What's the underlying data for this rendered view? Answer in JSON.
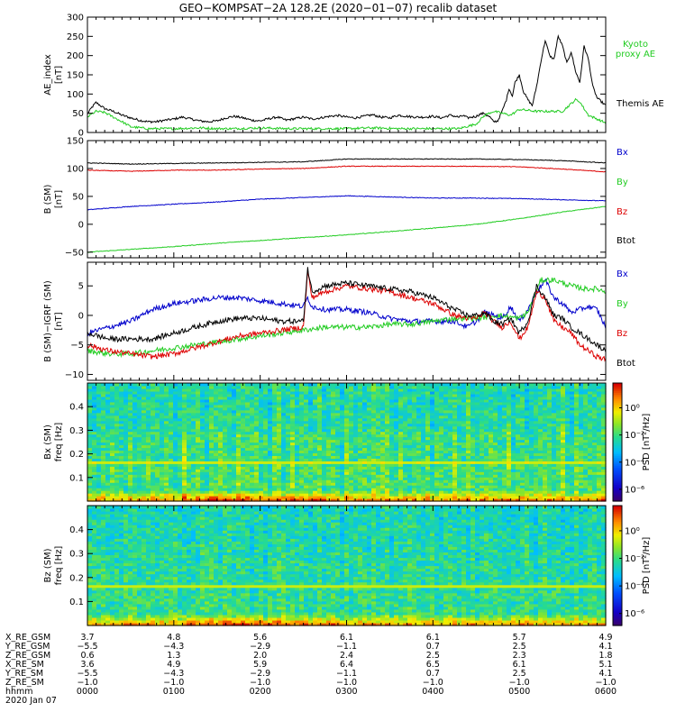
{
  "title": "GEO−KOMPSAT−2A 128.2E (2020−01−07) recalib dataset",
  "chart_data": [
    {
      "type": "line",
      "ylabel_lines": [
        "AE_index",
        "[nT]"
      ],
      "ylim": [
        0,
        300
      ],
      "yticks": [
        "0",
        "50",
        "100",
        "150",
        "200",
        "250",
        "300"
      ],
      "xlim": [
        0,
        6
      ],
      "series": [
        {
          "name": "Themis AE",
          "color": "#000000",
          "x": [
            0,
            0.05,
            0.1,
            0.15,
            0.2,
            0.3,
            0.4,
            0.5,
            0.6,
            0.7,
            0.8,
            0.9,
            1.0,
            1.1,
            1.2,
            1.3,
            1.4,
            1.5,
            1.6,
            1.7,
            1.8,
            1.9,
            2.0,
            2.1,
            2.2,
            2.3,
            2.4,
            2.5,
            2.6,
            2.7,
            2.8,
            2.9,
            3.0,
            3.1,
            3.2,
            3.3,
            3.4,
            3.5,
            3.6,
            3.7,
            3.8,
            3.9,
            4.0,
            4.1,
            4.2,
            4.3,
            4.35,
            4.4,
            4.5,
            4.55,
            4.6,
            4.62,
            4.66,
            4.7,
            4.75,
            4.8,
            4.85,
            4.88,
            4.92,
            4.95,
            5.0,
            5.05,
            5.1,
            5.15,
            5.2,
            5.25,
            5.3,
            5.35,
            5.4,
            5.45,
            5.5,
            5.55,
            5.6,
            5.65,
            5.7,
            5.75,
            5.8,
            5.85,
            5.9,
            5.95,
            6.0
          ],
          "y": [
            48,
            65,
            78,
            70,
            62,
            55,
            45,
            38,
            32,
            28,
            28,
            32,
            35,
            40,
            35,
            30,
            28,
            30,
            38,
            42,
            38,
            32,
            30,
            36,
            40,
            32,
            36,
            40,
            35,
            38,
            42,
            44,
            40,
            38,
            42,
            46,
            40,
            38,
            45,
            42,
            40,
            40,
            42,
            38,
            45,
            40,
            44,
            38,
            42,
            48,
            50,
            45,
            40,
            28,
            30,
            55,
            85,
            115,
            95,
            130,
            150,
            105,
            85,
            70,
            120,
            185,
            240,
            200,
            190,
            250,
            225,
            180,
            210,
            160,
            130,
            225,
            190,
            120,
            90,
            80,
            70
          ]
        },
        {
          "name": "Kyoto proxy AE",
          "color": "#22cc22",
          "label_lines": [
            "Kyoto",
            "proxy AE"
          ],
          "x": [
            0,
            0.05,
            0.1,
            0.2,
            0.3,
            0.4,
            0.5,
            0.7,
            1.0,
            1.3,
            1.5,
            1.7,
            2.0,
            2.3,
            2.6,
            3.0,
            3.3,
            3.6,
            4.0,
            4.3,
            4.5,
            4.6,
            4.7,
            4.8,
            4.9,
            5.0,
            5.2,
            5.4,
            5.5,
            5.6,
            5.65,
            5.7,
            5.75,
            5.8,
            5.9,
            6.0
          ],
          "y": [
            40,
            48,
            55,
            52,
            40,
            28,
            15,
            10,
            10,
            12,
            10,
            10,
            12,
            10,
            10,
            10,
            12,
            10,
            10,
            10,
            22,
            45,
            55,
            50,
            45,
            60,
            55,
            55,
            55,
            75,
            85,
            80,
            62,
            45,
            35,
            25
          ]
        }
      ]
    },
    {
      "type": "line",
      "ylabel_lines": [
        "B (SM)",
        "[nT]"
      ],
      "ylim": [
        -60,
        150
      ],
      "yticks": [
        "−50",
        "0",
        "50",
        "100",
        "150"
      ],
      "xlim": [
        0,
        6
      ],
      "series": [
        {
          "name": "Bx",
          "color": "#0000cc",
          "x": [
            0,
            0.5,
            1,
            1.5,
            2,
            2.5,
            3,
            3.5,
            4,
            4.5,
            5,
            5.5,
            6
          ],
          "y": [
            26,
            32,
            36,
            40,
            45,
            48,
            51,
            49,
            47,
            47,
            46,
            44,
            42
          ]
        },
        {
          "name": "By",
          "color": "#22cc22",
          "x": [
            0,
            0.5,
            1,
            1.5,
            2,
            2.5,
            3,
            3.5,
            4,
            4.5,
            5,
            5.5,
            6
          ],
          "y": [
            -50,
            -45,
            -40,
            -34,
            -29,
            -24,
            -19,
            -13,
            -7,
            0,
            10,
            22,
            32
          ]
        },
        {
          "name": "Bz",
          "color": "#dd0000",
          "x": [
            0,
            0.5,
            1,
            1.5,
            2,
            2.5,
            3,
            3.5,
            4,
            4.5,
            5,
            5.5,
            6
          ],
          "y": [
            97,
            95,
            97,
            97,
            99,
            100,
            104,
            104,
            104,
            104,
            103,
            99,
            94
          ]
        },
        {
          "name": "Btot",
          "color": "#000000",
          "x": [
            0,
            0.5,
            1,
            1.5,
            2,
            2.5,
            3,
            3.5,
            4,
            4.5,
            5,
            5.5,
            6
          ],
          "y": [
            110,
            108,
            109,
            110,
            111,
            112,
            117,
            117,
            117,
            117,
            116,
            114,
            110
          ]
        }
      ]
    },
    {
      "type": "line",
      "ylabel_lines": [
        "B (SM)−IGRF (SM)",
        "[nT]"
      ],
      "ylim": [
        -11,
        9
      ],
      "yticks": [
        "−10",
        "−5",
        "0",
        "5"
      ],
      "xlim": [
        0,
        6
      ],
      "series": [
        {
          "name": "Bx",
          "color": "#0000cc",
          "x": [
            0,
            0.25,
            0.5,
            0.75,
            1.0,
            1.25,
            1.5,
            1.75,
            2.0,
            2.25,
            2.5,
            2.55,
            2.6,
            2.75,
            3.0,
            3.25,
            3.5,
            3.75,
            4.0,
            4.25,
            4.4,
            4.5,
            4.6,
            4.7,
            4.8,
            4.9,
            5.0,
            5.1,
            5.2,
            5.3,
            5.4,
            5.5,
            5.6,
            5.7,
            5.8,
            5.9,
            6.0
          ],
          "y": [
            -3,
            -2,
            -1,
            1,
            2,
            2.5,
            3,
            3,
            2.5,
            2,
            1.5,
            3,
            1.5,
            1,
            1,
            0.5,
            -0.5,
            -1,
            -1,
            -1,
            -2,
            -1,
            0.5,
            0,
            -0.5,
            1.5,
            -1,
            1,
            4,
            6,
            3,
            2,
            0.5,
            1,
            1.5,
            1,
            -2
          ]
        },
        {
          "name": "By",
          "color": "#22cc22",
          "x": [
            0,
            0.25,
            0.5,
            0.75,
            1.0,
            1.25,
            1.5,
            1.75,
            2.0,
            2.25,
            2.5,
            2.75,
            3.0,
            3.25,
            3.5,
            3.75,
            4.0,
            4.25,
            4.5,
            4.75,
            5.0,
            5.1,
            5.25,
            5.4,
            5.6,
            5.75,
            5.9,
            6.0
          ],
          "y": [
            -6,
            -6.5,
            -6.5,
            -6,
            -5.5,
            -5,
            -4.5,
            -4,
            -3.5,
            -3,
            -2.5,
            -2,
            -2,
            -2,
            -1.5,
            -1.5,
            -1,
            -0.5,
            -0.5,
            0,
            -0.5,
            0.5,
            6,
            6,
            5,
            4.5,
            4.5,
            4
          ]
        },
        {
          "name": "Bz",
          "color": "#dd0000",
          "x": [
            0,
            0.25,
            0.5,
            0.75,
            1.0,
            1.25,
            1.5,
            1.75,
            2.0,
            2.25,
            2.5,
            2.55,
            2.6,
            2.75,
            3.0,
            3.25,
            3.5,
            3.75,
            4.0,
            4.25,
            4.4,
            4.5,
            4.6,
            4.7,
            4.8,
            4.9,
            5.0,
            5.1,
            5.2,
            5.3,
            5.4,
            5.5,
            5.6,
            5.7,
            5.8,
            5.9,
            6.0
          ],
          "y": [
            -5,
            -6,
            -6.5,
            -7,
            -6.5,
            -5.5,
            -4.5,
            -3.5,
            -3,
            -2.5,
            -2,
            7.5,
            3,
            4,
            5,
            4.5,
            4,
            3,
            2,
            0,
            -0.5,
            -0.5,
            0.5,
            -1,
            -2,
            -1,
            -4,
            -2,
            4,
            3,
            -1,
            -2,
            -3,
            -5,
            -6,
            -7,
            -7.5
          ]
        },
        {
          "name": "Btot",
          "color": "#000000",
          "x": [
            0,
            0.25,
            0.5,
            0.75,
            1.0,
            1.25,
            1.5,
            1.75,
            2.0,
            2.25,
            2.5,
            2.55,
            2.6,
            2.75,
            3.0,
            3.25,
            3.5,
            3.75,
            4.0,
            4.25,
            4.4,
            4.5,
            4.6,
            4.7,
            4.8,
            4.9,
            5.0,
            5.1,
            5.2,
            5.3,
            5.4,
            5.5,
            5.6,
            5.7,
            5.8,
            5.9,
            6.0
          ],
          "y": [
            -3,
            -4,
            -4,
            -4,
            -3,
            -2,
            -1,
            -0.5,
            -0.5,
            -1,
            -1,
            8,
            4,
            5,
            5.5,
            5,
            4.5,
            4,
            3,
            1,
            0,
            0,
            0.5,
            -1,
            -1.5,
            -0.5,
            -3,
            -1,
            5,
            3,
            0,
            -0.5,
            -2,
            -3,
            -4,
            -5,
            -6
          ]
        }
      ]
    },
    {
      "type": "heatmap",
      "ylabel_lines": [
        "Bx (SM)",
        "freq [Hz]"
      ],
      "ylim": [
        0,
        0.5
      ],
      "yticks": [
        "0.1",
        "0.2",
        "0.3",
        "0.4"
      ],
      "colorbar_label": "PSD [nT²/Hz]",
      "colorbar_ticks": [
        "10⁰",
        "10⁻²",
        "10⁻⁴",
        "10⁻⁶"
      ]
    },
    {
      "type": "heatmap",
      "ylabel_lines": [
        "Bz (SM)",
        "freq [Hz]"
      ],
      "ylim": [
        0,
        0.5
      ],
      "yticks": [
        "0.1",
        "0.2",
        "0.3",
        "0.4"
      ],
      "colorbar_label": "PSD [nT²/Hz]",
      "colorbar_ticks": [
        "10⁰",
        "10⁻²",
        "10⁻⁴",
        "10⁻⁶"
      ]
    }
  ],
  "ephemeris": {
    "row_labels": [
      "X_RE_GSM",
      "Y_RE_GSM",
      "Z_RE_GSM",
      "X_RE_SM",
      "Y_RE_SM",
      "Z_RE_SM",
      "hhmm"
    ],
    "columns": [
      [
        "3.7",
        "−5.5",
        "0.6",
        "3.6",
        "−5.5",
        "−1.0",
        "0000"
      ],
      [
        "4.8",
        "−4.3",
        "1.3",
        "4.9",
        "−4.3",
        "−1.0",
        "0100"
      ],
      [
        "5.6",
        "−2.9",
        "2.0",
        "5.9",
        "−2.9",
        "−1.0",
        "0200"
      ],
      [
        "6.1",
        "−1.1",
        "2.4",
        "6.4",
        "−1.1",
        "−1.0",
        "0300"
      ],
      [
        "6.1",
        "0.7",
        "2.5",
        "6.5",
        "0.7",
        "−1.0",
        "0400"
      ],
      [
        "5.7",
        "2.5",
        "2.3",
        "6.1",
        "2.5",
        "−1.0",
        "0500"
      ],
      [
        "4.9",
        "4.1",
        "1.8",
        "5.1",
        "4.1",
        "−1.0",
        "0600"
      ]
    ],
    "date": "2020 Jan 07"
  }
}
